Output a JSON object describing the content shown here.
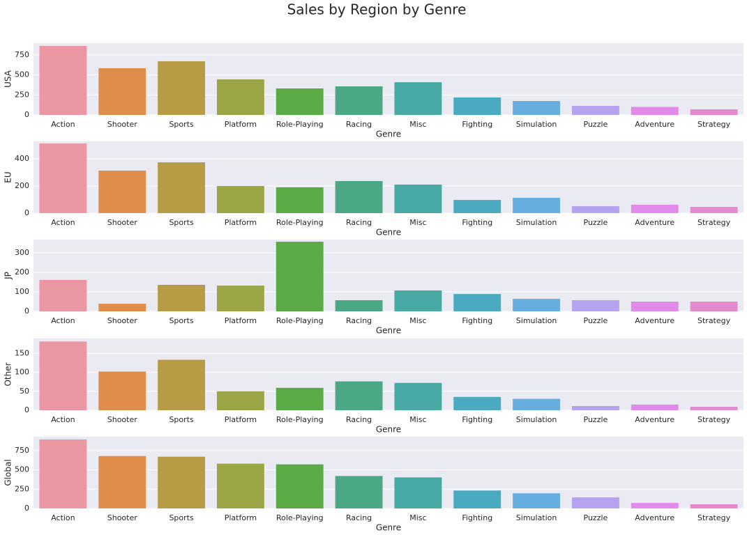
{
  "title": "Sales by Region by Genre",
  "chart_data": [
    {
      "type": "bar",
      "ylabel": "USA",
      "xlabel": "Genre",
      "categories": [
        "Action",
        "Shooter",
        "Sports",
        "Platform",
        "Role-Playing",
        "Racing",
        "Misc",
        "Fighting",
        "Simulation",
        "Puzzle",
        "Adventure",
        "Strategy"
      ],
      "values": [
        862,
        584,
        671,
        444,
        331,
        357,
        409,
        218,
        174,
        113,
        100,
        70
      ],
      "colors": [
        "#ea96a3",
        "#e08c4a",
        "#b89b45",
        "#9ba545",
        "#5aab45",
        "#4aa984",
        "#49a9a4",
        "#4aaac0",
        "#67aee0",
        "#b5a3ef",
        "#e18aea",
        "#e68ad0"
      ],
      "ylim": [
        0,
        897
      ],
      "yticks": [
        0,
        250,
        500,
        750
      ],
      "grid": true
    },
    {
      "type": "bar",
      "ylabel": "EU",
      "xlabel": "Genre",
      "categories": [
        "Action",
        "Shooter",
        "Sports",
        "Platform",
        "Role-Playing",
        "Racing",
        "Misc",
        "Fighting",
        "Simulation",
        "Puzzle",
        "Adventure",
        "Strategy"
      ],
      "values": [
        513,
        313,
        374,
        200,
        190,
        236,
        210,
        97,
        113,
        51,
        62,
        46
      ],
      "colors": [
        "#ea96a3",
        "#e08c4a",
        "#b89b45",
        "#9ba545",
        "#5aab45",
        "#4aa984",
        "#49a9a4",
        "#4aaac0",
        "#67aee0",
        "#b5a3ef",
        "#e18aea",
        "#e68ad0"
      ],
      "ylim": [
        0,
        528
      ],
      "yticks": [
        0,
        200,
        400
      ],
      "grid": true
    },
    {
      "type": "bar",
      "ylabel": "JP",
      "xlabel": "Genre",
      "categories": [
        "Action",
        "Shooter",
        "Sports",
        "Platform",
        "Role-Playing",
        "Racing",
        "Misc",
        "Fighting",
        "Simulation",
        "Puzzle",
        "Adventure",
        "Strategy"
      ],
      "values": [
        161,
        39,
        136,
        132,
        357,
        57,
        107,
        89,
        64,
        57,
        50,
        50
      ],
      "colors": [
        "#ea96a3",
        "#e08c4a",
        "#b89b45",
        "#9ba545",
        "#5aab45",
        "#4aa984",
        "#49a9a4",
        "#4aaac0",
        "#67aee0",
        "#b5a3ef",
        "#e18aea",
        "#e68ad0"
      ],
      "ylim": [
        0,
        368
      ],
      "yticks": [
        0,
        100,
        200,
        300
      ],
      "grid": true
    },
    {
      "type": "bar",
      "ylabel": "Other",
      "xlabel": "Genre",
      "categories": [
        "Action",
        "Shooter",
        "Sports",
        "Platform",
        "Role-Playing",
        "Racing",
        "Misc",
        "Fighting",
        "Simulation",
        "Puzzle",
        "Adventure",
        "Strategy"
      ],
      "values": [
        181,
        102,
        133,
        50,
        59,
        76,
        72,
        35,
        30,
        11,
        15,
        9
      ],
      "colors": [
        "#ea96a3",
        "#e08c4a",
        "#b89b45",
        "#9ba545",
        "#5aab45",
        "#4aa984",
        "#49a9a4",
        "#4aaac0",
        "#67aee0",
        "#b5a3ef",
        "#e18aea",
        "#e68ad0"
      ],
      "ylim": [
        0,
        189
      ],
      "yticks": [
        0,
        50,
        100,
        150
      ],
      "grid": true
    },
    {
      "type": "bar",
      "ylabel": "Global",
      "xlabel": "Genre",
      "categories": [
        "Action",
        "Shooter",
        "Sports",
        "Platform",
        "Role-Playing",
        "Racing",
        "Misc",
        "Fighting",
        "Simulation",
        "Puzzle",
        "Adventure",
        "Strategy"
      ],
      "values": [
        893,
        679,
        670,
        580,
        571,
        420,
        402,
        232,
        196,
        143,
        71,
        54
      ],
      "colors": [
        "#ea96a3",
        "#e08c4a",
        "#b89b45",
        "#9ba545",
        "#5aab45",
        "#4aa984",
        "#49a9a4",
        "#4aaac0",
        "#67aee0",
        "#b5a3ef",
        "#e18aea",
        "#e68ad0"
      ],
      "ylim": [
        0,
        929
      ],
      "yticks": [
        0,
        250,
        500,
        750
      ],
      "grid": true
    }
  ]
}
